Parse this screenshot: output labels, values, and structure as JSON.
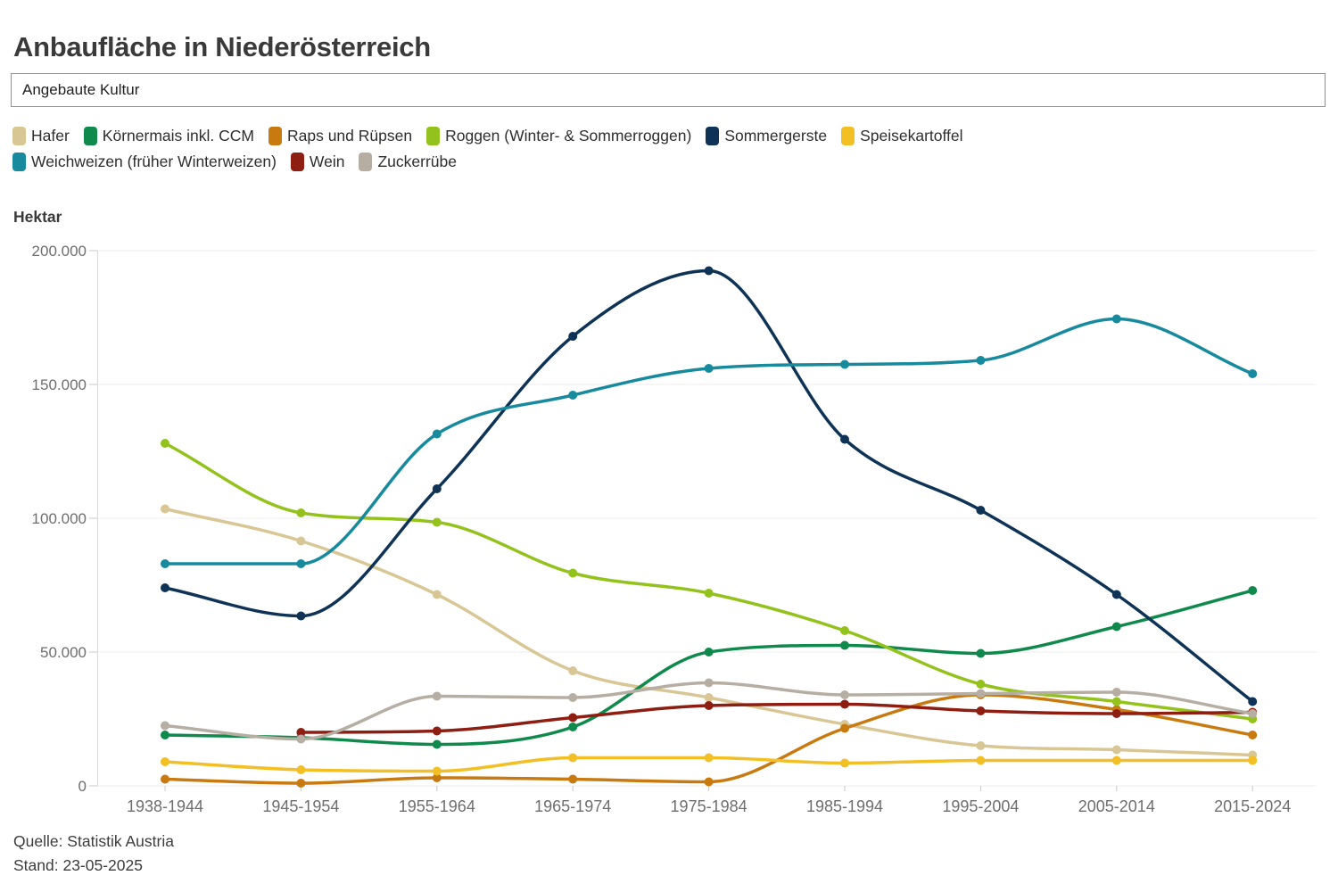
{
  "title": "Anbaufläche in Niederösterreich",
  "filter": {
    "value": "Angebaute Kultur"
  },
  "axis_unit": "Hektar",
  "footer": {
    "source": "Quelle: Statistik Austria",
    "stand": "Stand: 23-05-2025"
  },
  "chart_data": {
    "type": "line",
    "title": "Anbaufläche in Niederösterreich",
    "ylabel": "Hektar",
    "xlabel": "",
    "grid": true,
    "legend_position": "top",
    "ylim": [
      0,
      200000
    ],
    "y_tick_step": 50000,
    "y_tick_labels": [
      "0",
      "50.000",
      "100.000",
      "150.000",
      "200.000"
    ],
    "categories": [
      "1938-1944",
      "1945-1954",
      "1955-1964",
      "1965-1974",
      "1975-1984",
      "1985-1994",
      "1995-2004",
      "2005-2014",
      "2015-2024"
    ],
    "series": [
      {
        "name": "Hafer",
        "color": "#d8c795",
        "values": [
          103500,
          91500,
          71500,
          43000,
          33000,
          23000,
          15000,
          13500,
          11500
        ]
      },
      {
        "name": "Körnermais inkl. CCM",
        "color": "#0f8a4c",
        "values": [
          19000,
          18000,
          15500,
          22000,
          50000,
          52500,
          49500,
          59500,
          73000
        ]
      },
      {
        "name": "Raps und Rüpsen",
        "color": "#c87a10",
        "values": [
          2500,
          1000,
          3000,
          2500,
          1500,
          21500,
          34000,
          28500,
          19000
        ]
      },
      {
        "name": "Roggen (Winter- & Sommerroggen)",
        "color": "#93c21c",
        "values": [
          128000,
          102000,
          98500,
          79500,
          72000,
          58000,
          38000,
          31500,
          25000
        ]
      },
      {
        "name": "Sommergerste",
        "color": "#0f3356",
        "values": [
          74000,
          63500,
          111000,
          168000,
          192500,
          129500,
          103000,
          71500,
          31500
        ]
      },
      {
        "name": "Speisekartoffel",
        "color": "#f2bf24",
        "values": [
          9000,
          6000,
          5500,
          10500,
          10500,
          8500,
          9500,
          9500,
          9500
        ]
      },
      {
        "name": "Weichweizen (früher Winterweizen)",
        "color": "#178a9d",
        "values": [
          83000,
          83000,
          131500,
          146000,
          156000,
          157500,
          159000,
          174500,
          154000
        ]
      },
      {
        "name": "Wein",
        "color": "#8e1d12",
        "values": [
          null,
          20000,
          20500,
          25500,
          30000,
          30500,
          28000,
          27000,
          27500
        ]
      },
      {
        "name": "Zuckerrübe",
        "color": "#b6aea3",
        "values": [
          22500,
          17500,
          33500,
          33000,
          38500,
          34000,
          34500,
          35000,
          27000
        ]
      }
    ]
  }
}
